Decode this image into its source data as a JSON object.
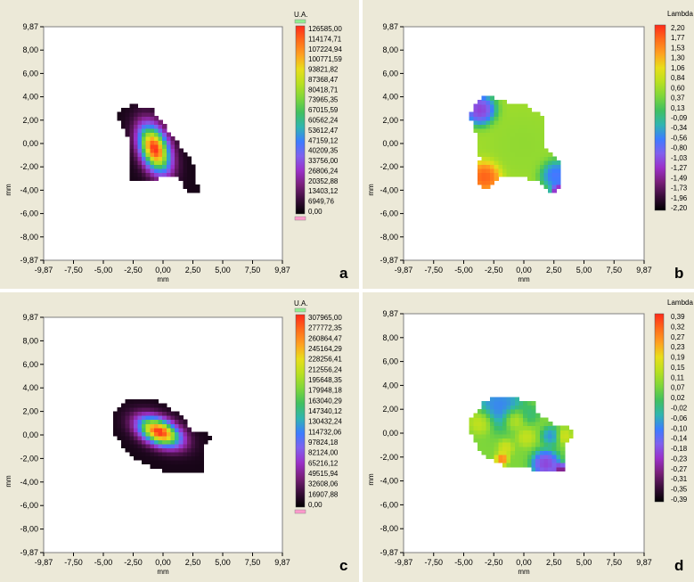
{
  "chart_data": [
    {
      "type": "heatmap",
      "panel_label": "a",
      "xlabel": "mm",
      "ylabel": "mm",
      "xlim": [
        -9.87,
        9.87
      ],
      "ylim": [
        -9.87,
        9.87
      ],
      "x_tick_labels": [
        "-9,87",
        "-7,50",
        "-5,00",
        "-2,50",
        "0,00",
        "2,50",
        "5,00",
        "7,50",
        "9,87"
      ],
      "y_tick_labels": [
        "9,87",
        "8,00",
        "6,00",
        "4,00",
        "2,00",
        "0,00",
        "-2,00",
        "-4,00",
        "-6,00",
        "-8,00",
        "-9,87"
      ],
      "colorbar_title": "U.A.",
      "colorbar_range": [
        0,
        126585
      ],
      "colorbar_tick_labels": [
        "126585,00",
        "114174,71",
        "107224,94",
        "100771,59",
        "93821,82",
        "87368,47",
        "80418,71",
        "73965,35",
        "67015,59",
        "60562,24",
        "53612,47",
        "47159,12",
        "40209,35",
        "33756,00",
        "26806,24",
        "20352,88",
        "13403,12",
        "6949,76",
        "0,00"
      ],
      "map": {
        "region": [
          [
            -3.7,
            2.7
          ],
          [
            -2.4,
            3.3
          ],
          [
            -0.8,
            2.8
          ],
          [
            0.6,
            0.8
          ],
          [
            2.6,
            -1.8
          ],
          [
            2.9,
            -4.0
          ],
          [
            2.2,
            -4.1
          ],
          [
            1.0,
            -2.7
          ],
          [
            -1.5,
            -3.1
          ],
          [
            -2.7,
            -3.3
          ],
          [
            -2.8,
            -1.9
          ],
          [
            -2.9,
            0.7
          ],
          [
            -3.7,
            2.1
          ]
        ],
        "peak": [
          -0.7,
          -0.4
        ],
        "peak_value": 126585,
        "spread": [
          1.05,
          1.9
        ],
        "tilt_deg": 20
      }
    },
    {
      "type": "heatmap",
      "panel_label": "b",
      "xlabel": "mm",
      "ylabel": "mm",
      "xlim": [
        -9.87,
        9.87
      ],
      "ylim": [
        -9.87,
        9.87
      ],
      "x_tick_labels": [
        "-9,87",
        "-7,50",
        "-5,00",
        "-2,50",
        "0,00",
        "2,50",
        "5,00",
        "7,50",
        "9,87"
      ],
      "y_tick_labels": [
        "9,87",
        "8,00",
        "6,00",
        "4,00",
        "2,00",
        "0,00",
        "-2,00",
        "-4,00",
        "-6,00",
        "-8,00",
        "-9,87"
      ],
      "colorbar_title": "Lambda",
      "colorbar_range": [
        -2.2,
        2.2
      ],
      "colorbar_tick_labels": [
        "2,20",
        "1,77",
        "1,53",
        "1,30",
        "1,06",
        "0,84",
        "0,60",
        "0,37",
        "0,13",
        "-0,09",
        "-0,34",
        "-0,56",
        "-0,80",
        "-1,03",
        "-1,27",
        "-1,49",
        "-1,73",
        "-1,96",
        "-2,20"
      ],
      "map": {
        "region": [
          [
            -4.5,
            2.6
          ],
          [
            -3.3,
            4.0
          ],
          [
            -2.3,
            3.8
          ],
          [
            -1.5,
            3.5
          ],
          [
            0.0,
            3.3
          ],
          [
            1.5,
            2.4
          ],
          [
            1.7,
            -0.3
          ],
          [
            3.0,
            -1.6
          ],
          [
            3.0,
            -3.8
          ],
          [
            2.4,
            -4.2
          ],
          [
            1.0,
            -3.0
          ],
          [
            -1.8,
            -2.8
          ],
          [
            -3.2,
            -3.9
          ],
          [
            -4.0,
            -3.2
          ],
          [
            -3.6,
            -1.2
          ],
          [
            -3.8,
            0.6
          ]
        ],
        "base_value": 0.7,
        "features": [
          {
            "center": [
              -3.6,
              2.9
            ],
            "value": -1.5,
            "radius": 1.0
          },
          {
            "center": [
              -3.2,
              -2.8
            ],
            "value": 2.2,
            "radius": 1.0
          },
          {
            "center": [
              2.6,
              -2.6
            ],
            "value": -0.9,
            "radius": 1.0
          },
          {
            "center": [
              2.9,
              -4.0
            ],
            "value": -2.2,
            "radius": 0.5
          },
          {
            "center": [
              0.0,
              0.0
            ],
            "value": 0.6,
            "radius": 2.0
          }
        ]
      }
    },
    {
      "type": "heatmap",
      "panel_label": "c",
      "xlabel": "mm",
      "ylabel": "mm",
      "xlim": [
        -9.87,
        9.87
      ],
      "ylim": [
        -9.87,
        9.87
      ],
      "x_tick_labels": [
        "-9,87",
        "-7,50",
        "-5,00",
        "-2,50",
        "0,00",
        "2,50",
        "5,00",
        "7,50",
        "9,87"
      ],
      "y_tick_labels": [
        "9,87",
        "8,00",
        "6,00",
        "4,00",
        "2,00",
        "0,00",
        "-2,00",
        "-4,00",
        "-6,00",
        "-8,00",
        "-9,87"
      ],
      "colorbar_title": "U.A.",
      "colorbar_range": [
        0,
        307965
      ],
      "colorbar_tick_labels": [
        "307965,00",
        "277772,35",
        "260864,47",
        "245164,29",
        "228256,41",
        "212556,24",
        "195648,35",
        "179948,18",
        "163040,29",
        "147340,12",
        "130432,24",
        "114732,06",
        "97824,18",
        "82124,00",
        "65216,12",
        "49515,94",
        "32608,06",
        "16907,88",
        "0,00"
      ],
      "map": {
        "region": [
          [
            -4.3,
            1.7
          ],
          [
            -3.0,
            2.9
          ],
          [
            -1.0,
            3.2
          ],
          [
            1.0,
            2.0
          ],
          [
            2.5,
            0.4
          ],
          [
            4.0,
            0.0
          ],
          [
            3.7,
            -0.5
          ],
          [
            3.3,
            -0.8
          ],
          [
            3.3,
            -3.2
          ],
          [
            0.9,
            -3.2
          ],
          [
            -1.0,
            -2.7
          ],
          [
            -2.8,
            -1.8
          ],
          [
            -3.6,
            -0.5
          ],
          [
            -4.3,
            0.5
          ]
        ],
        "peak": [
          -0.3,
          0.3
        ],
        "peak_value": 307965,
        "spread": [
          1.7,
          0.95
        ],
        "tilt_deg": -25
      }
    },
    {
      "type": "heatmap",
      "panel_label": "d",
      "xlabel": "mm",
      "ylabel": "mm",
      "xlim": [
        -9.87,
        9.87
      ],
      "ylim": [
        -9.87,
        9.87
      ],
      "x_tick_labels": [
        "-9,87",
        "-7,50",
        "-5,00",
        "-2,50",
        "0,00",
        "2,50",
        "5,00",
        "7,50",
        "9,87"
      ],
      "y_tick_labels": [
        "9,87",
        "8,00",
        "6,00",
        "4,00",
        "2,00",
        "0,00",
        "-2,00",
        "-4,00",
        "-6,00",
        "-8,00",
        "-9,87"
      ],
      "colorbar_title": "Lambda",
      "colorbar_range": [
        -0.39,
        0.39
      ],
      "colorbar_tick_labels": [
        "0,39",
        "0,32",
        "0,27",
        "0,23",
        "0,19",
        "0,15",
        "0,11",
        "0,07",
        "0,02",
        "-0,02",
        "-0,06",
        "-0,10",
        "-0,14",
        "-0,18",
        "-0,23",
        "-0,27",
        "-0,31",
        "-0,35",
        "-0,39"
      ],
      "map": {
        "region": [
          [
            -4.5,
            1.2
          ],
          [
            -3.0,
            2.8
          ],
          [
            -1.0,
            3.0
          ],
          [
            0.8,
            2.6
          ],
          [
            1.2,
            1.6
          ],
          [
            2.4,
            0.8
          ],
          [
            4.0,
            0.4
          ],
          [
            3.8,
            -0.6
          ],
          [
            3.3,
            -0.8
          ],
          [
            3.2,
            -3.2
          ],
          [
            1.0,
            -3.0
          ],
          [
            -1.8,
            -2.6
          ],
          [
            -3.4,
            -1.8
          ],
          [
            -4.3,
            0.0
          ]
        ],
        "base_value": 0.09,
        "features": [
          {
            "center": [
              -2.0,
              2.3
            ],
            "value": -0.12,
            "radius": 1.5
          },
          {
            "center": [
              -3.5,
              1.0
            ],
            "value": 0.2,
            "radius": 0.8
          },
          {
            "center": [
              -0.8,
              1.2
            ],
            "value": 0.2,
            "radius": 0.7
          },
          {
            "center": [
              0.5,
              1.6
            ],
            "value": 0.0,
            "radius": 0.6
          },
          {
            "center": [
              0.2,
              -0.3
            ],
            "value": 0.18,
            "radius": 0.6
          },
          {
            "center": [
              2.2,
              -0.2
            ],
            "value": -0.1,
            "radius": 0.6
          },
          {
            "center": [
              -1.5,
              -1.2
            ],
            "value": 0.2,
            "radius": 0.5
          },
          {
            "center": [
              -1.8,
              -2.1
            ],
            "value": 0.36,
            "radius": 0.4
          },
          {
            "center": [
              1.8,
              -2.5
            ],
            "value": -0.25,
            "radius": 0.9
          },
          {
            "center": [
              3.0,
              -3.0
            ],
            "value": -0.36,
            "radius": 0.4
          },
          {
            "center": [
              3.3,
              -0.2
            ],
            "value": 0.2,
            "radius": 0.5
          }
        ]
      }
    }
  ],
  "colors": {
    "panel_background": "#ece9d8",
    "plot_background": "#ffffff",
    "colorbar_top_marker": "#90ee90",
    "colorbar_bottom_marker": "#ff99cc",
    "colormap": [
      "#000000",
      "#3a0d3a",
      "#7a1f7a",
      "#9b30c9",
      "#8060ee",
      "#3c7cff",
      "#2fb5b0",
      "#40c060",
      "#7ed63a",
      "#b8e020",
      "#e8de1a",
      "#ffa020",
      "#ff6a1a",
      "#ff2a1a"
    ]
  }
}
